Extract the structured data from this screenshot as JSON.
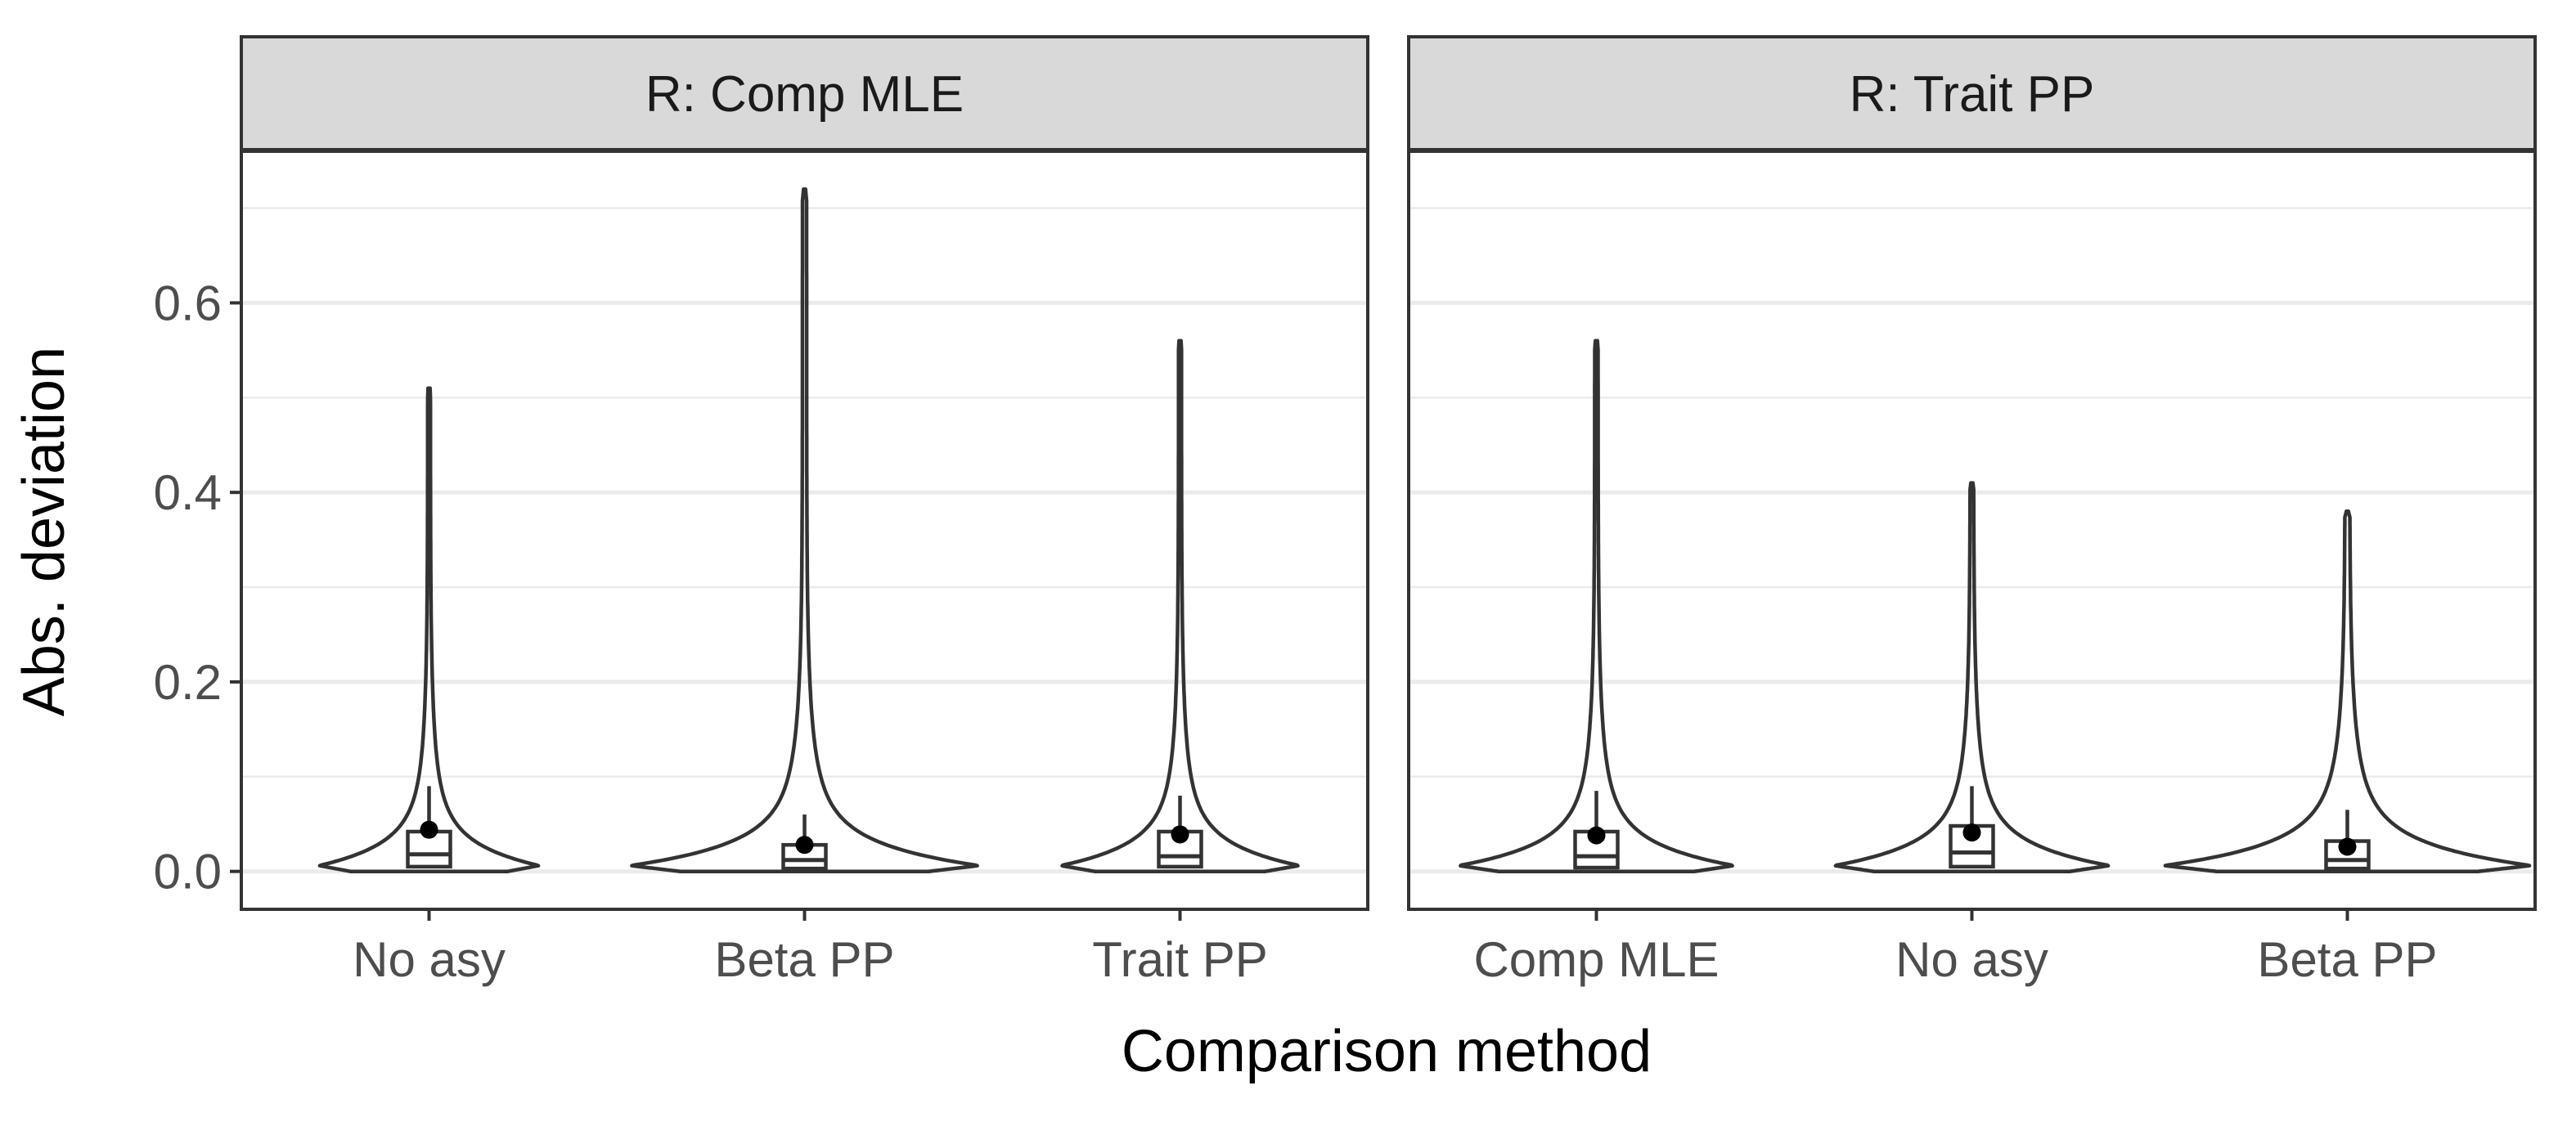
{
  "chart_data": {
    "type": "violin",
    "xlabel": "Comparison method",
    "ylabel": "Abs. deviation",
    "ylim": [
      -0.04,
      0.76
    ],
    "y_ticks": [
      0.0,
      0.2,
      0.4,
      0.6
    ],
    "y_tick_labels": [
      "0.0",
      "0.2",
      "0.4",
      "0.6"
    ],
    "grid": true,
    "legend": "none",
    "colors": {
      "outline": "#333333",
      "grid": "#ebebeb",
      "strip": "#d9d9d9",
      "mean_point": "#000000"
    },
    "panels": [
      {
        "strip": "R: Comp MLE",
        "groups": [
          {
            "category": "No asy",
            "max": 0.51,
            "mean": 0.044,
            "q1": 0.005,
            "median": 0.018,
            "q3": 0.042,
            "whisker_hi": 0.09,
            "width": 0.6
          },
          {
            "category": "Beta PP",
            "max": 0.72,
            "mean": 0.028,
            "q1": 0.003,
            "median": 0.012,
            "q3": 0.028,
            "whisker_hi": 0.06,
            "width": 0.95
          },
          {
            "category": "Trait PP",
            "max": 0.56,
            "mean": 0.039,
            "q1": 0.005,
            "median": 0.016,
            "q3": 0.042,
            "whisker_hi": 0.08,
            "width": 0.65
          }
        ]
      },
      {
        "strip": "R: Trait PP",
        "groups": [
          {
            "category": "Comp MLE",
            "max": 0.56,
            "mean": 0.038,
            "q1": 0.004,
            "median": 0.016,
            "q3": 0.042,
            "whisker_hi": 0.085,
            "width": 0.75
          },
          {
            "category": "No asy",
            "max": 0.41,
            "mean": 0.041,
            "q1": 0.005,
            "median": 0.02,
            "q3": 0.048,
            "whisker_hi": 0.09,
            "width": 0.75
          },
          {
            "category": "Beta PP",
            "max": 0.38,
            "mean": 0.026,
            "q1": 0.003,
            "median": 0.012,
            "q3": 0.032,
            "whisker_hi": 0.065,
            "width": 1.0
          }
        ]
      }
    ]
  }
}
